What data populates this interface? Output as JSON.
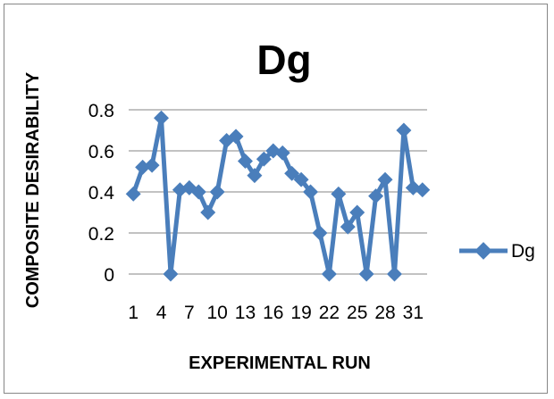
{
  "chart_data": {
    "type": "line",
    "title": "Dg",
    "xlabel": "EXPERIMENTAL RUN",
    "ylabel": "COMPOSITE DESIRABILITY",
    "x": [
      1,
      2,
      3,
      4,
      5,
      6,
      7,
      8,
      9,
      10,
      11,
      12,
      13,
      14,
      15,
      16,
      17,
      18,
      19,
      20,
      21,
      22,
      23,
      24,
      25,
      26,
      27,
      28,
      29,
      30,
      31,
      32
    ],
    "x_tick_labels": [
      "1",
      "4",
      "7",
      "10",
      "13",
      "16",
      "19",
      "22",
      "25",
      "28",
      "31"
    ],
    "x_tick_positions": [
      1,
      4,
      7,
      10,
      13,
      16,
      19,
      22,
      25,
      28,
      31
    ],
    "series": [
      {
        "name": "Dg",
        "color": "#4a7ebb",
        "values": [
          0.39,
          0.52,
          0.53,
          0.76,
          0.0,
          0.41,
          0.42,
          0.4,
          0.3,
          0.4,
          0.65,
          0.67,
          0.55,
          0.48,
          0.56,
          0.6,
          0.59,
          0.49,
          0.46,
          0.4,
          0.2,
          0.0,
          0.39,
          0.23,
          0.3,
          0.0,
          0.38,
          0.46,
          0.0,
          0.7,
          0.42,
          0.41
        ]
      }
    ],
    "y_ticks": [
      "0",
      "0.2",
      "0.4",
      "0.6",
      "0.8"
    ],
    "y_tick_values": [
      0,
      0.2,
      0.4,
      0.6,
      0.8
    ],
    "ylim": [
      0,
      0.8
    ],
    "grid": true,
    "legend": "right",
    "gridline_color": "#868686"
  }
}
